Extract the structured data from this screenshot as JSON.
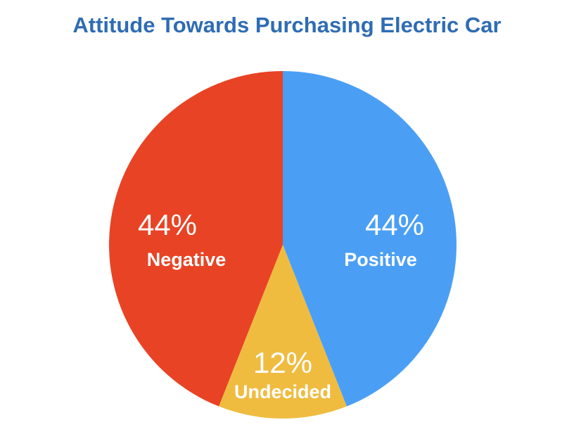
{
  "chart_data": {
    "type": "pie",
    "title": "Attitude Towards Purchasing Electric Car",
    "slices": [
      {
        "label": "Positive",
        "value": 44,
        "percent_label": "44%",
        "color": "#4a9ff5"
      },
      {
        "label": "Undecided",
        "value": 12,
        "percent_label": "12%",
        "color": "#efbc40"
      },
      {
        "label": "Negative",
        "value": 44,
        "percent_label": "44%",
        "color": "#e84324"
      }
    ],
    "start_angle": "top",
    "direction": "clockwise",
    "legend": "none"
  }
}
